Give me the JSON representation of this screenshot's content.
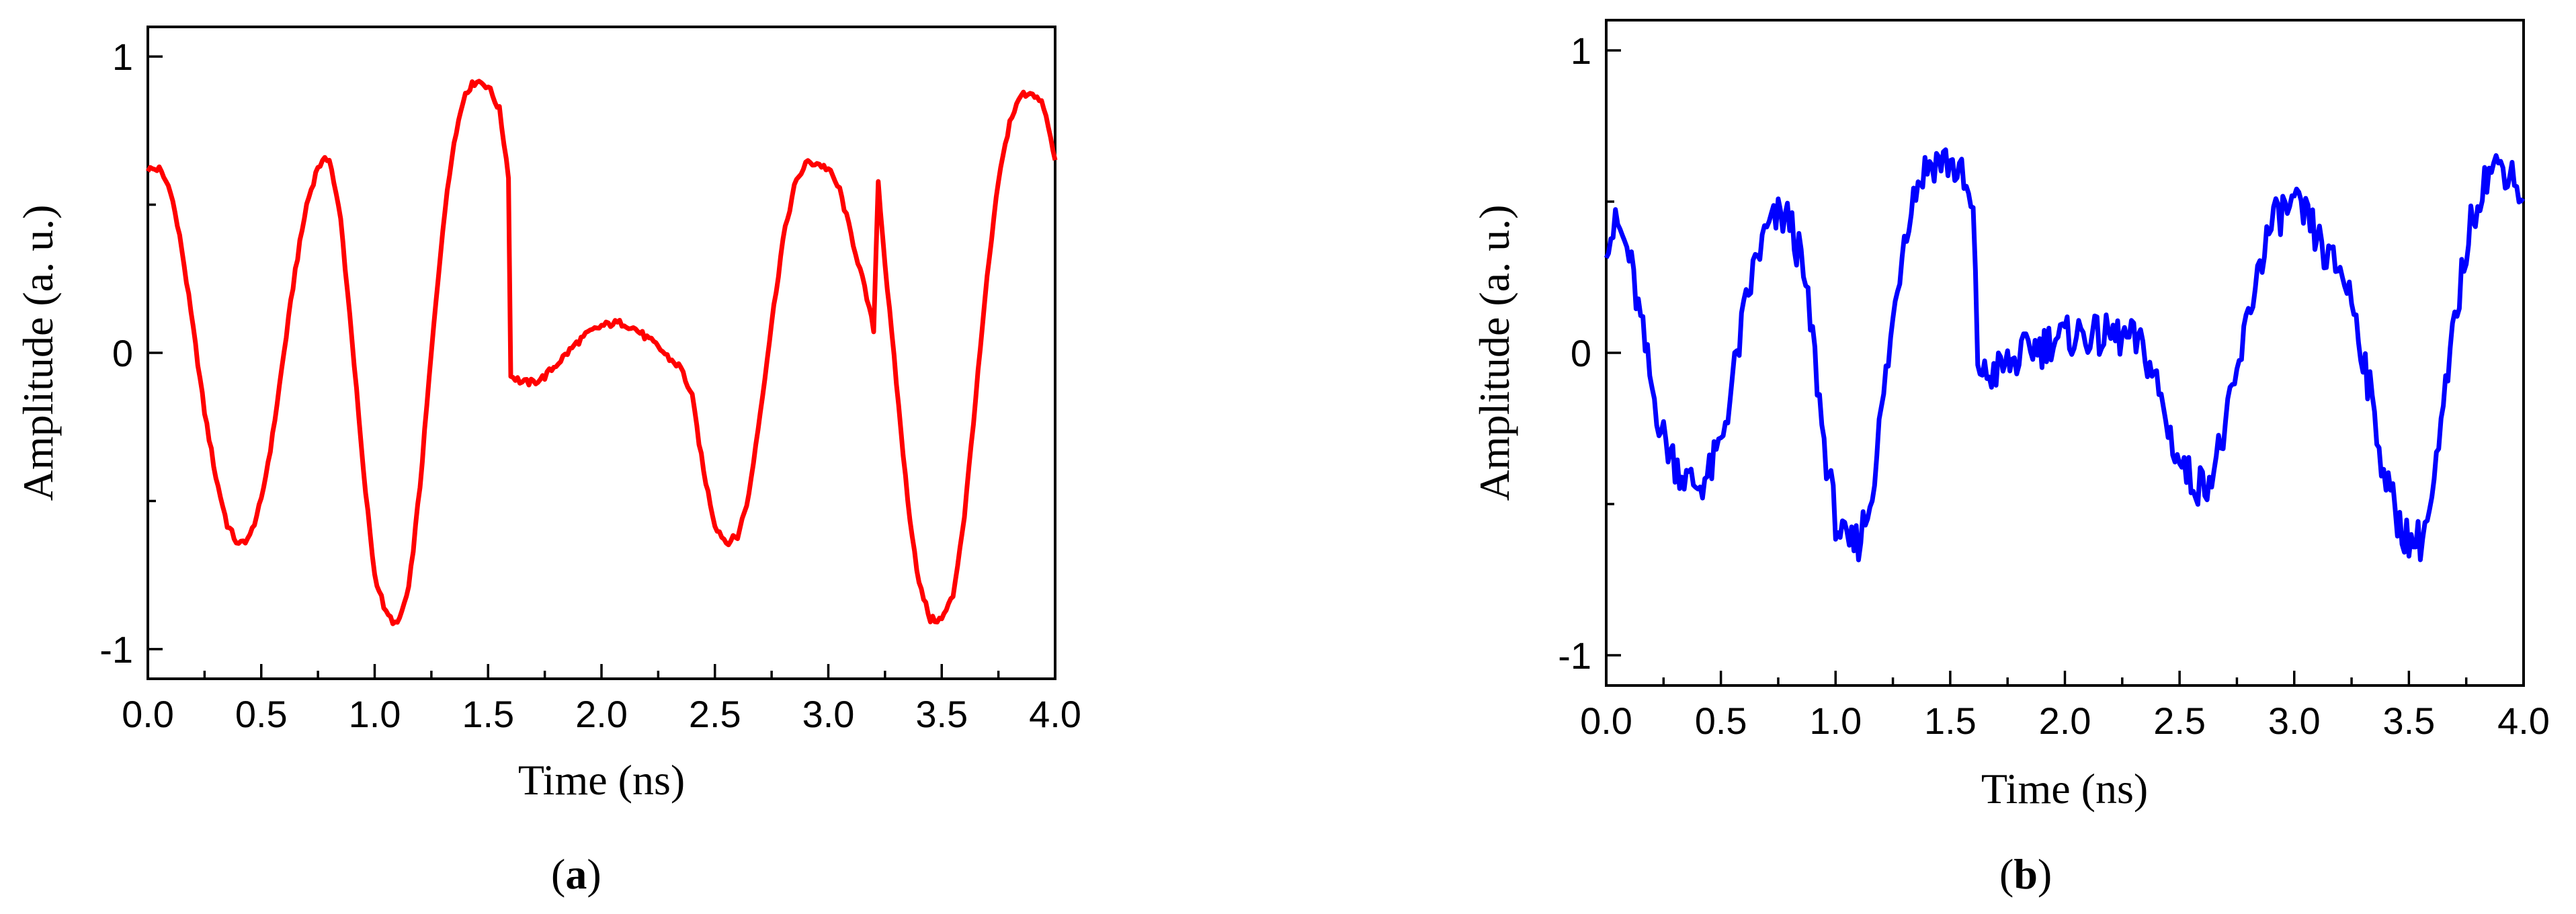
{
  "chart_data": [
    {
      "type": "line",
      "panel_label": "a",
      "xlabel": "Time (ns)",
      "ylabel": "Amplitude (a. u.)",
      "xlim": [
        0.0,
        4.0
      ],
      "ylim": [
        -1.1,
        1.1
      ],
      "x_ticks": [
        "0.0",
        "0.5",
        "1.0",
        "1.5",
        "2.0",
        "2.5",
        "3.0",
        "3.5",
        "4.0"
      ],
      "y_ticks": [
        "-1",
        "0",
        "1"
      ],
      "grid": false,
      "series": [
        {
          "color": "#ff0000",
          "x": [
            0.0,
            0.05,
            0.1,
            0.15,
            0.2,
            0.25,
            0.3,
            0.35,
            0.4,
            0.45,
            0.5,
            0.55,
            0.6,
            0.65,
            0.7,
            0.75,
            0.8,
            0.85,
            0.9,
            0.95,
            1.0,
            1.05,
            1.1,
            1.15,
            1.2,
            1.25,
            1.3,
            1.35,
            1.4,
            1.45,
            1.5,
            1.55,
            1.59,
            1.6,
            1.61,
            1.65,
            1.7,
            1.75,
            1.8,
            1.85,
            1.9,
            1.95,
            2.0,
            2.05,
            2.1,
            2.15,
            2.2,
            2.25,
            2.3,
            2.35,
            2.4,
            2.45,
            2.5,
            2.55,
            2.6,
            2.65,
            2.7,
            2.75,
            2.8,
            2.85,
            2.9,
            2.95,
            3.0,
            3.05,
            3.1,
            3.15,
            3.2,
            3.22,
            3.25,
            3.3,
            3.35,
            3.4,
            3.45,
            3.5,
            3.55,
            3.6,
            3.65,
            3.7,
            3.75,
            3.8,
            3.85,
            3.9,
            3.95,
            4.0
          ],
          "y": [
            0.62,
            0.62,
            0.55,
            0.35,
            0.08,
            -0.2,
            -0.42,
            -0.58,
            -0.65,
            -0.62,
            -0.5,
            -0.28,
            0.0,
            0.28,
            0.5,
            0.63,
            0.66,
            0.45,
            0.05,
            -0.4,
            -0.75,
            -0.88,
            -0.92,
            -0.8,
            -0.45,
            0.0,
            0.42,
            0.72,
            0.88,
            0.92,
            0.9,
            0.82,
            0.6,
            -0.08,
            -0.08,
            -0.1,
            -0.1,
            -0.08,
            -0.04,
            0.0,
            0.04,
            0.07,
            0.09,
            0.1,
            0.1,
            0.08,
            0.05,
            0.02,
            -0.02,
            -0.05,
            -0.15,
            -0.4,
            -0.58,
            -0.64,
            -0.62,
            -0.48,
            -0.2,
            0.1,
            0.38,
            0.56,
            0.64,
            0.64,
            0.62,
            0.55,
            0.4,
            0.25,
            0.08,
            0.58,
            0.3,
            -0.1,
            -0.5,
            -0.78,
            -0.9,
            -0.9,
            -0.82,
            -0.55,
            -0.15,
            0.25,
            0.58,
            0.78,
            0.87,
            0.88,
            0.83,
            0.65
          ]
        }
      ]
    },
    {
      "type": "line",
      "panel_label": "b",
      "xlabel": "Time (ns)",
      "ylabel": "Amplitude (a. u.)",
      "xlim": [
        0.0,
        4.0
      ],
      "ylim": [
        -1.1,
        1.1
      ],
      "x_ticks": [
        "0.0",
        "0.5",
        "1.0",
        "1.5",
        "2.0",
        "2.5",
        "3.0",
        "3.5",
        "4.0"
      ],
      "y_ticks": [
        "-1",
        "0",
        "1"
      ],
      "grid": false,
      "series": [
        {
          "color": "#0000ff",
          "x": [
            0.0,
            0.05,
            0.1,
            0.15,
            0.2,
            0.25,
            0.3,
            0.35,
            0.4,
            0.45,
            0.5,
            0.55,
            0.6,
            0.65,
            0.7,
            0.75,
            0.8,
            0.85,
            0.9,
            0.95,
            1.0,
            1.05,
            1.1,
            1.15,
            1.2,
            1.25,
            1.3,
            1.35,
            1.4,
            1.45,
            1.5,
            1.55,
            1.6,
            1.62,
            1.65,
            1.7,
            1.75,
            1.8,
            1.85,
            1.9,
            1.95,
            2.0,
            2.05,
            2.1,
            2.15,
            2.2,
            2.25,
            2.3,
            2.35,
            2.4,
            2.45,
            2.5,
            2.55,
            2.6,
            2.65,
            2.7,
            2.75,
            2.8,
            2.85,
            2.9,
            2.95,
            3.0,
            3.05,
            3.1,
            3.15,
            3.2,
            3.25,
            3.3,
            3.35,
            3.4,
            3.45,
            3.5,
            3.55,
            3.6,
            3.65,
            3.7,
            3.75,
            3.8,
            3.85,
            3.9,
            3.95,
            4.0
          ],
          "y": [
            0.38,
            0.42,
            0.32,
            0.1,
            -0.12,
            -0.28,
            -0.36,
            -0.42,
            -0.44,
            -0.4,
            -0.3,
            -0.1,
            0.12,
            0.3,
            0.4,
            0.45,
            0.44,
            0.3,
            0.05,
            -0.3,
            -0.55,
            -0.65,
            -0.62,
            -0.5,
            -0.2,
            0.1,
            0.4,
            0.55,
            0.62,
            0.64,
            0.63,
            0.58,
            0.45,
            -0.02,
            -0.08,
            -0.06,
            -0.04,
            -0.02,
            0.02,
            0.02,
            0.05,
            0.05,
            0.06,
            0.06,
            0.05,
            0.06,
            0.05,
            0.04,
            0.0,
            -0.1,
            -0.25,
            -0.36,
            -0.42,
            -0.44,
            -0.38,
            -0.25,
            -0.08,
            0.12,
            0.3,
            0.42,
            0.47,
            0.48,
            0.45,
            0.38,
            0.3,
            0.28,
            0.18,
            0.0,
            -0.22,
            -0.42,
            -0.55,
            -0.62,
            -0.62,
            -0.5,
            -0.2,
            0.1,
            0.35,
            0.52,
            0.6,
            0.62,
            0.6,
            0.5
          ]
        }
      ]
    }
  ]
}
